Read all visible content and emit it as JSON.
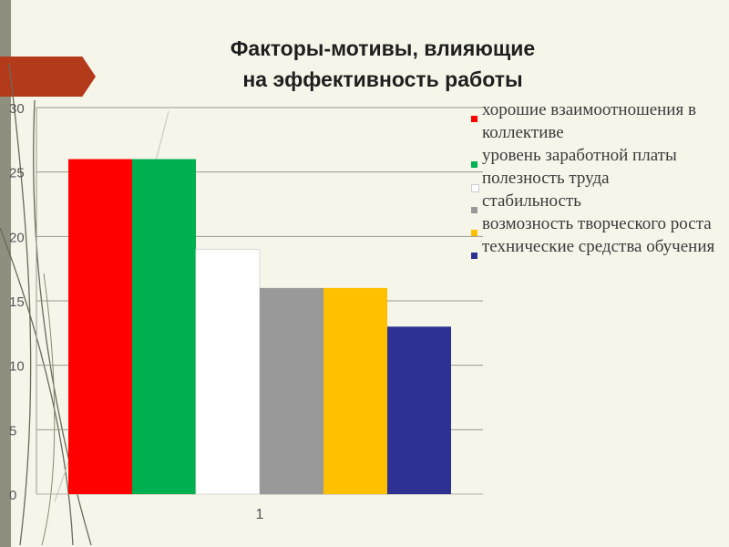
{
  "title": {
    "line1": "Факторы-мотивы, влияющие",
    "line2": "на эффективность работы"
  },
  "colors": {
    "background": "#f6f5ea",
    "accent_banner": "#b33a1a",
    "side_strip": "#8f8f7f"
  },
  "chart_data": {
    "type": "bar",
    "categories": [
      "1"
    ],
    "series": [
      {
        "name": "хорошие взаимоотношения в коллективе",
        "values": [
          26
        ],
        "color": "#ff0000"
      },
      {
        "name": "уровень заработной платы",
        "values": [
          26
        ],
        "color": "#00b050"
      },
      {
        "name": "полезность труда",
        "values": [
          19
        ],
        "color": "#ffffff"
      },
      {
        "name": "стабильность",
        "values": [
          16
        ],
        "color": "#999999"
      },
      {
        "name": "возмозность творческого роста",
        "values": [
          16
        ],
        "color": "#ffc000"
      },
      {
        "name": "технические средства обучения",
        "values": [
          13
        ],
        "color": "#2e3192"
      }
    ],
    "ylim": [
      0,
      30
    ],
    "yticks": [
      "0",
      "5",
      "10",
      "15",
      "20",
      "25",
      "30"
    ],
    "grid": true,
    "legend_position": "right",
    "xlabel": "",
    "ylabel": ""
  }
}
